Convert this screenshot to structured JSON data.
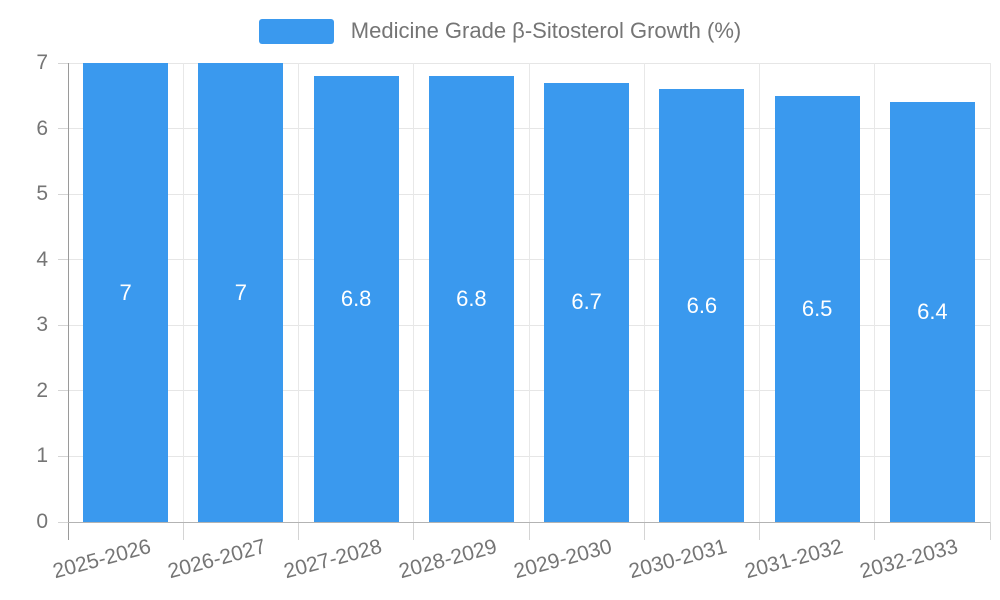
{
  "legend": {
    "label": "Medicine Grade β-Sitosterol Growth (%)"
  },
  "chart_data": {
    "type": "bar",
    "title": "Medicine Grade β-Sitosterol Growth (%)",
    "categories": [
      "2025-2026",
      "2026-2027",
      "2027-2028",
      "2028-2029",
      "2029-2030",
      "2030-2031",
      "2031-2032",
      "2032-2033"
    ],
    "values": [
      7,
      7,
      6.8,
      6.8,
      6.7,
      6.6,
      6.5,
      6.4
    ],
    "bar_labels": [
      "7",
      "7",
      "6.8",
      "6.8",
      "6.7",
      "6.6",
      "6.5",
      "6.4"
    ],
    "xlabel": "",
    "ylabel": "",
    "ylim": [
      0,
      7
    ],
    "yticks": [
      0,
      1,
      2,
      3,
      4,
      5,
      6,
      7
    ],
    "grid": true,
    "legend_position": "top-center",
    "x_label_rotation_deg": -15,
    "colors": {
      "bar": "#3A99EE",
      "bar_label_text": "#ffffff",
      "axis_text": "#757575",
      "grid_line": "#e6e6e6",
      "axis_line": "#9a9a9a"
    }
  }
}
